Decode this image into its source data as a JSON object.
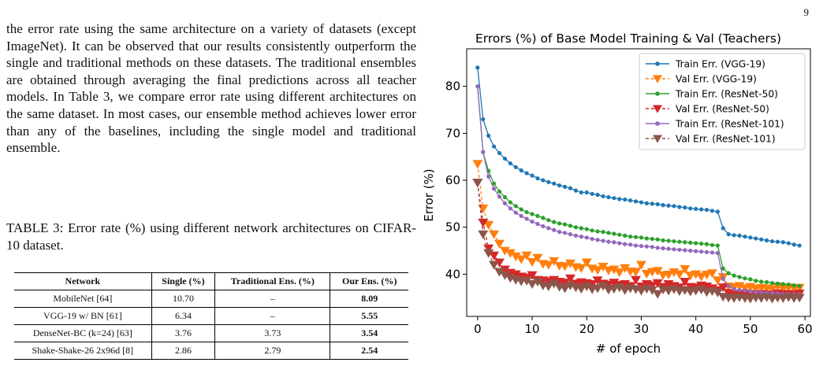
{
  "page_number": "9",
  "body_text": "the error rate using the same architecture on a variety of datasets (except ImageNet). It can be observed that our results consistently outperform the single and traditional methods on these datasets. The traditional ensembles are obtained through averaging the final predictions across all teacher models. In Table 3, we compare error rate using different architectures on the same dataset. In most cases, our ensemble method achieves lower error than any of the baselines, including the single model and traditional ensemble.",
  "table": {
    "caption": "TABLE 3: Error rate (%) using different network architectures on CIFAR-10 dataset.",
    "headers": [
      "Network",
      "Single (%)",
      "Traditional Ens. (%)",
      "Our Ens. (%)"
    ],
    "rows": [
      [
        "MobileNet [64]",
        "10.70",
        "–",
        "8.09"
      ],
      [
        "VGG-19 w/ BN [61]",
        "6.34",
        "–",
        "5.55"
      ],
      [
        "DenseNet-BC (k=24) [63]",
        "3.76",
        "3.73",
        "3.54"
      ],
      [
        "Shake-Shake-26 2x96d [8]",
        "2.86",
        "2.79",
        "2.54"
      ]
    ]
  },
  "chart_data": {
    "type": "line",
    "title": "Errors (%) of Base Model Training & Val (Teachers)",
    "xlabel": "# of epoch",
    "ylabel": "Error (%)",
    "xlim": [
      -2,
      61
    ],
    "ylim": [
      31,
      88
    ],
    "xticks": [
      0,
      10,
      20,
      30,
      40,
      50,
      60
    ],
    "yticks": [
      40,
      50,
      60,
      70,
      80
    ],
    "legend_position": "top-right",
    "grid": false,
    "series": [
      {
        "name": "Train Err. (VGG-19)",
        "color": "#1f77b4",
        "marker": "circle",
        "linestyle": "solid",
        "x": [
          0,
          1,
          2,
          3,
          4,
          5,
          6,
          7,
          8,
          9,
          10,
          11,
          12,
          13,
          14,
          15,
          16,
          17,
          18,
          19,
          20,
          21,
          22,
          23,
          24,
          25,
          26,
          27,
          28,
          29,
          30,
          31,
          32,
          33,
          34,
          35,
          36,
          37,
          38,
          39,
          40,
          41,
          42,
          43,
          44,
          45,
          46,
          47,
          48,
          49,
          50,
          51,
          52,
          53,
          54,
          55,
          56,
          57,
          58,
          59
        ],
        "values": [
          84,
          73,
          69.5,
          67.2,
          65.8,
          64.6,
          63.6,
          62.8,
          62.1,
          61.5,
          61.0,
          60.4,
          60.0,
          59.6,
          59.3,
          58.9,
          58.6,
          58.3,
          57.8,
          57.4,
          57.4,
          57.1,
          56.9,
          56.6,
          56.4,
          56.2,
          56.0,
          55.9,
          55.7,
          55.5,
          55.3,
          55.1,
          55.0,
          54.9,
          54.7,
          54.6,
          54.5,
          54.3,
          54.2,
          54.0,
          53.9,
          53.8,
          53.7,
          53.5,
          53.3,
          49.8,
          48.5,
          48.3,
          48.2,
          48.0,
          47.8,
          47.6,
          47.4,
          47.2,
          47.0,
          46.9,
          46.8,
          46.6,
          46.3,
          46.1
        ]
      },
      {
        "name": "Val Err. (VGG-19)",
        "color": "#ff7f0e",
        "marker": "triangle-down",
        "linestyle": "dashed",
        "x": [
          0,
          1,
          2,
          3,
          4,
          5,
          6,
          7,
          8,
          9,
          10,
          11,
          12,
          13,
          14,
          15,
          16,
          17,
          18,
          19,
          20,
          21,
          22,
          23,
          24,
          25,
          26,
          27,
          28,
          29,
          30,
          31,
          32,
          33,
          34,
          35,
          36,
          37,
          38,
          39,
          40,
          41,
          42,
          43,
          44,
          45,
          46,
          47,
          48,
          49,
          50,
          51,
          52,
          53,
          54,
          55,
          56,
          57,
          58,
          59
        ],
        "values": [
          63.5,
          54,
          50.5,
          48.5,
          46.5,
          45,
          44.5,
          43.8,
          43.2,
          44,
          42.6,
          43.5,
          42.2,
          42.0,
          42.8,
          41.8,
          41.7,
          42.3,
          41.5,
          41.3,
          42.5,
          41.2,
          40.9,
          41.6,
          40.8,
          41.0,
          40.4,
          41.3,
          40.6,
          40.5,
          42,
          40.1,
          40.5,
          40.7,
          39.8,
          39.9,
          40.4,
          40.0,
          41.1,
          39.7,
          40.0,
          39.5,
          39.9,
          40.2,
          38.7,
          39.4,
          37.4,
          37.2,
          37.5,
          37.0,
          37.3,
          36.9,
          37.1,
          37.0,
          36.8,
          37.4,
          36.9,
          37.2,
          37.0,
          37.1
        ]
      },
      {
        "name": "Train Err. (ResNet-50)",
        "color": "#2ca02c",
        "marker": "circle",
        "linestyle": "solid",
        "x": [
          0,
          1,
          2,
          3,
          4,
          5,
          6,
          7,
          8,
          9,
          10,
          11,
          12,
          13,
          14,
          15,
          16,
          17,
          18,
          19,
          20,
          21,
          22,
          23,
          24,
          25,
          26,
          27,
          28,
          29,
          30,
          31,
          32,
          33,
          34,
          35,
          36,
          37,
          38,
          39,
          40,
          41,
          42,
          43,
          44,
          45,
          46,
          47,
          48,
          49,
          50,
          51,
          52,
          53,
          54,
          55,
          56,
          57,
          58,
          59
        ],
        "values": [
          80,
          66,
          62,
          59.3,
          57.6,
          56.4,
          55.3,
          54.5,
          53.8,
          53.2,
          52.8,
          52.4,
          52.0,
          51.5,
          51.1,
          50.8,
          50.6,
          50.3,
          50.0,
          49.8,
          49.6,
          49.3,
          49.1,
          49.0,
          48.8,
          48.6,
          48.4,
          48.2,
          48.0,
          47.9,
          47.8,
          47.6,
          47.5,
          47.4,
          47.2,
          47.1,
          47.0,
          46.9,
          46.8,
          46.7,
          46.6,
          46.5,
          46.4,
          46.2,
          46.1,
          41.2,
          40.2,
          39.7,
          39.4,
          39.1,
          38.9,
          38.6,
          38.4,
          38.3,
          38.1,
          38.0,
          37.9,
          37.8,
          37.6,
          37.5
        ]
      },
      {
        "name": "Val Err. (ResNet-50)",
        "color": "#d62728",
        "marker": "triangle-down",
        "linestyle": "dashed",
        "x": [
          0,
          1,
          2,
          3,
          4,
          5,
          6,
          7,
          8,
          9,
          10,
          11,
          12,
          13,
          14,
          15,
          16,
          17,
          18,
          19,
          20,
          21,
          22,
          23,
          24,
          25,
          26,
          27,
          28,
          29,
          30,
          31,
          32,
          33,
          34,
          35,
          36,
          37,
          38,
          39,
          40,
          41,
          42,
          43,
          44,
          45,
          46,
          47,
          48,
          49,
          50,
          51,
          52,
          53,
          54,
          55,
          56,
          57,
          58,
          59
        ],
        "values": [
          59.5,
          51,
          45.5,
          44,
          42.5,
          41,
          40.3,
          40.0,
          39.5,
          39.3,
          39.8,
          38.8,
          38.7,
          38.5,
          38.8,
          38.4,
          38.2,
          39.1,
          38.0,
          38.3,
          38.1,
          37.9,
          38.7,
          38.0,
          37.8,
          38.2,
          37.7,
          37.9,
          37.5,
          38.8,
          37.4,
          37.9,
          37.6,
          38.1,
          37.3,
          37.9,
          37.5,
          37.2,
          38.4,
          37.3,
          37.2,
          37.6,
          37.4,
          37.0,
          36.6,
          37.2,
          36.0,
          35.7,
          35.6,
          35.9,
          35.8,
          35.6,
          35.8,
          35.7,
          35.6,
          35.9,
          35.7,
          35.8,
          35.6,
          35.9
        ]
      },
      {
        "name": "Train Err. (ResNet-101)",
        "color": "#9467bd",
        "marker": "circle",
        "linestyle": "solid",
        "x": [
          0,
          1,
          2,
          3,
          4,
          5,
          6,
          7,
          8,
          9,
          10,
          11,
          12,
          13,
          14,
          15,
          16,
          17,
          18,
          19,
          20,
          21,
          22,
          23,
          24,
          25,
          26,
          27,
          28,
          29,
          30,
          31,
          32,
          33,
          34,
          35,
          36,
          37,
          38,
          39,
          40,
          41,
          42,
          43,
          44,
          45,
          46,
          47,
          48,
          49,
          50,
          51,
          52,
          53,
          54,
          55,
          56,
          57,
          58,
          59
        ],
        "values": [
          80,
          66,
          60.8,
          58.2,
          56.5,
          55.1,
          54.0,
          53.1,
          52.4,
          51.8,
          51.2,
          50.7,
          50.2,
          49.8,
          49.4,
          49.0,
          48.8,
          48.5,
          48.2,
          48.0,
          47.8,
          47.5,
          47.3,
          47.1,
          46.9,
          46.8,
          46.6,
          46.4,
          46.3,
          46.1,
          46.0,
          45.9,
          45.8,
          45.6,
          45.5,
          45.4,
          45.3,
          45.2,
          45.1,
          45.0,
          44.9,
          44.8,
          44.7,
          44.6,
          44.5,
          39.0,
          37.5,
          36.8,
          36.6,
          36.5,
          36.3,
          36.2,
          36.1,
          36.0,
          36.0,
          35.9,
          35.8,
          35.8,
          35.7,
          35.7
        ]
      },
      {
        "name": "Val Err. (ResNet-101)",
        "color": "#8c564b",
        "marker": "triangle-down",
        "linestyle": "dashed",
        "x": [
          0,
          1,
          2,
          3,
          4,
          5,
          6,
          7,
          8,
          9,
          10,
          11,
          12,
          13,
          14,
          15,
          16,
          17,
          18,
          19,
          20,
          21,
          22,
          23,
          24,
          25,
          26,
          27,
          28,
          29,
          30,
          31,
          32,
          33,
          34,
          35,
          36,
          37,
          38,
          39,
          40,
          41,
          42,
          43,
          44,
          45,
          46,
          47,
          48,
          49,
          50,
          51,
          52,
          53,
          54,
          55,
          56,
          57,
          58,
          59
        ],
        "values": [
          59.5,
          48.5,
          44.5,
          42.0,
          40.5,
          39.8,
          39.2,
          38.8,
          38.5,
          38.6,
          37.9,
          38.4,
          37.6,
          37.4,
          38.0,
          37.3,
          37.0,
          37.6,
          37.2,
          36.9,
          37.4,
          36.8,
          37.0,
          37.5,
          36.7,
          36.9,
          37.2,
          36.6,
          37.0,
          36.8,
          36.5,
          36.9,
          36.6,
          35.8,
          36.7,
          36.5,
          36.8,
          36.4,
          36.6,
          36.3,
          36.5,
          36.7,
          36.2,
          36.4,
          36.1,
          35.2,
          35.0,
          34.9,
          35.1,
          34.9,
          34.8,
          35.0,
          34.9,
          35.1,
          34.8,
          35.0,
          34.9,
          35.1,
          34.9,
          35.0
        ]
      }
    ]
  }
}
